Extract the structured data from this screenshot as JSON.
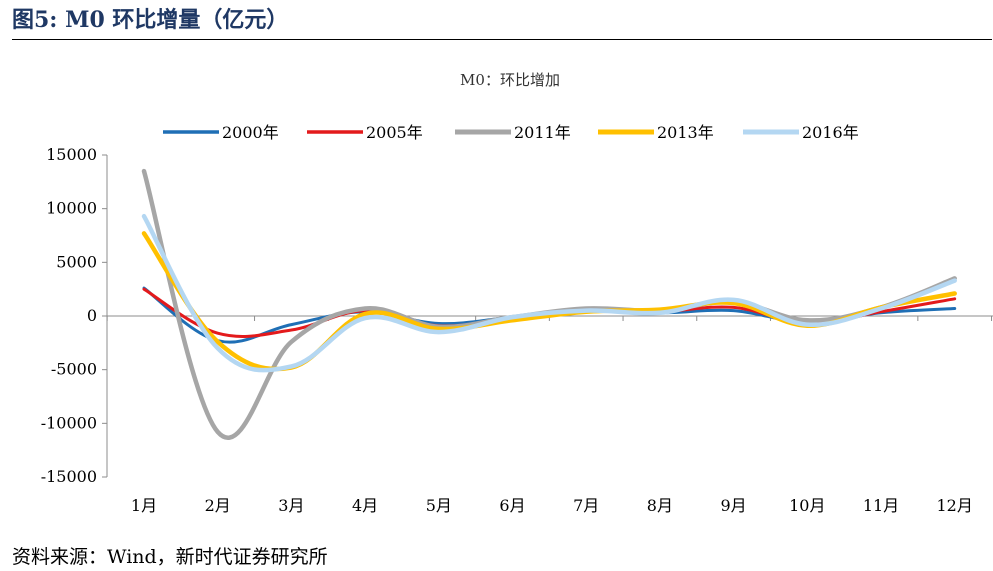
{
  "figure": {
    "title": "图5:  M0 环比增量（亿元）",
    "source": "资料来源：Wind，新时代证券研究所"
  },
  "chart_data": {
    "type": "line",
    "title": "M0：环比增加",
    "xlabel": "",
    "ylabel": "",
    "categories": [
      "1月",
      "2月",
      "3月",
      "4月",
      "5月",
      "6月",
      "7月",
      "8月",
      "9月",
      "10月",
      "11月",
      "12月"
    ],
    "ylim": [
      -15000,
      15000
    ],
    "yticks": [
      15000,
      10000,
      5000,
      0,
      -5000,
      -10000,
      -15000
    ],
    "grid": false,
    "legend_position": "top-center",
    "series": [
      {
        "name": "2000年",
        "color": "#1f6fb5",
        "values": [
          2600,
          -2300,
          -800,
          400,
          -700,
          -100,
          500,
          300,
          500,
          -600,
          300,
          700
        ]
      },
      {
        "name": "2005年",
        "color": "#e31a1c",
        "values": [
          2500,
          -1600,
          -1300,
          500,
          -900,
          -200,
          500,
          400,
          800,
          -700,
          400,
          1600
        ]
      },
      {
        "name": "2011年",
        "color": "#a6a6a6",
        "values": [
          13500,
          -10800,
          -2400,
          700,
          -1000,
          -100,
          700,
          500,
          1300,
          -400,
          800,
          3500
        ]
      },
      {
        "name": "2013年",
        "color": "#ffc000",
        "values": [
          7700,
          -2400,
          -4800,
          200,
          -1200,
          -400,
          400,
          600,
          1200,
          -900,
          800,
          2100
        ]
      },
      {
        "name": "2016年",
        "color": "#b4d7f2",
        "values": [
          9300,
          -3000,
          -4700,
          -200,
          -1500,
          -100,
          500,
          300,
          1500,
          -800,
          700,
          3300
        ]
      }
    ]
  }
}
